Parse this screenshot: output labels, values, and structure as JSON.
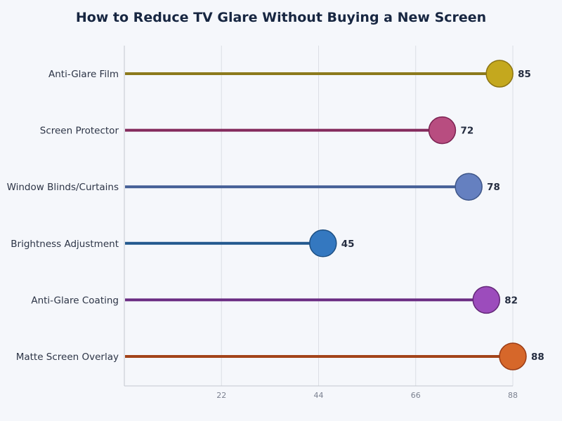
{
  "title": "How to Reduce TV Glare Without Buying a New Screen",
  "chart_data": {
    "type": "lollipop",
    "orientation": "horizontal",
    "title": "How to Reduce TV Glare Without Buying a New Screen",
    "xlabel": "",
    "ylabel": "",
    "xlim": [
      0,
      88
    ],
    "xticks": [
      22,
      44,
      66,
      88
    ],
    "grid": true,
    "legend": null,
    "categories": [
      "Anti-Glare Film",
      "Screen Protector",
      "Window Blinds/Curtains",
      "Brightness Adjustment",
      "Anti-Glare Coating",
      "Matte Screen Overlay"
    ],
    "values": [
      85,
      72,
      78,
      45,
      82,
      88
    ],
    "colors": [
      {
        "line": "#8c7a1c",
        "fill": "#c4a81e",
        "stroke": "#8c7412"
      },
      {
        "line": "#842a5c",
        "fill": "#b84d80",
        "stroke": "#7c2352"
      },
      {
        "line": "#445f96",
        "fill": "#6580c0",
        "stroke": "#3e5688"
      },
      {
        "line": "#22588e",
        "fill": "#3478c0",
        "stroke": "#1d4f82"
      },
      {
        "line": "#6a2c82",
        "fill": "#9c4cbc",
        "stroke": "#632878"
      },
      {
        "line": "#a3441a",
        "fill": "#d6672a",
        "stroke": "#9a3c16"
      }
    ]
  }
}
